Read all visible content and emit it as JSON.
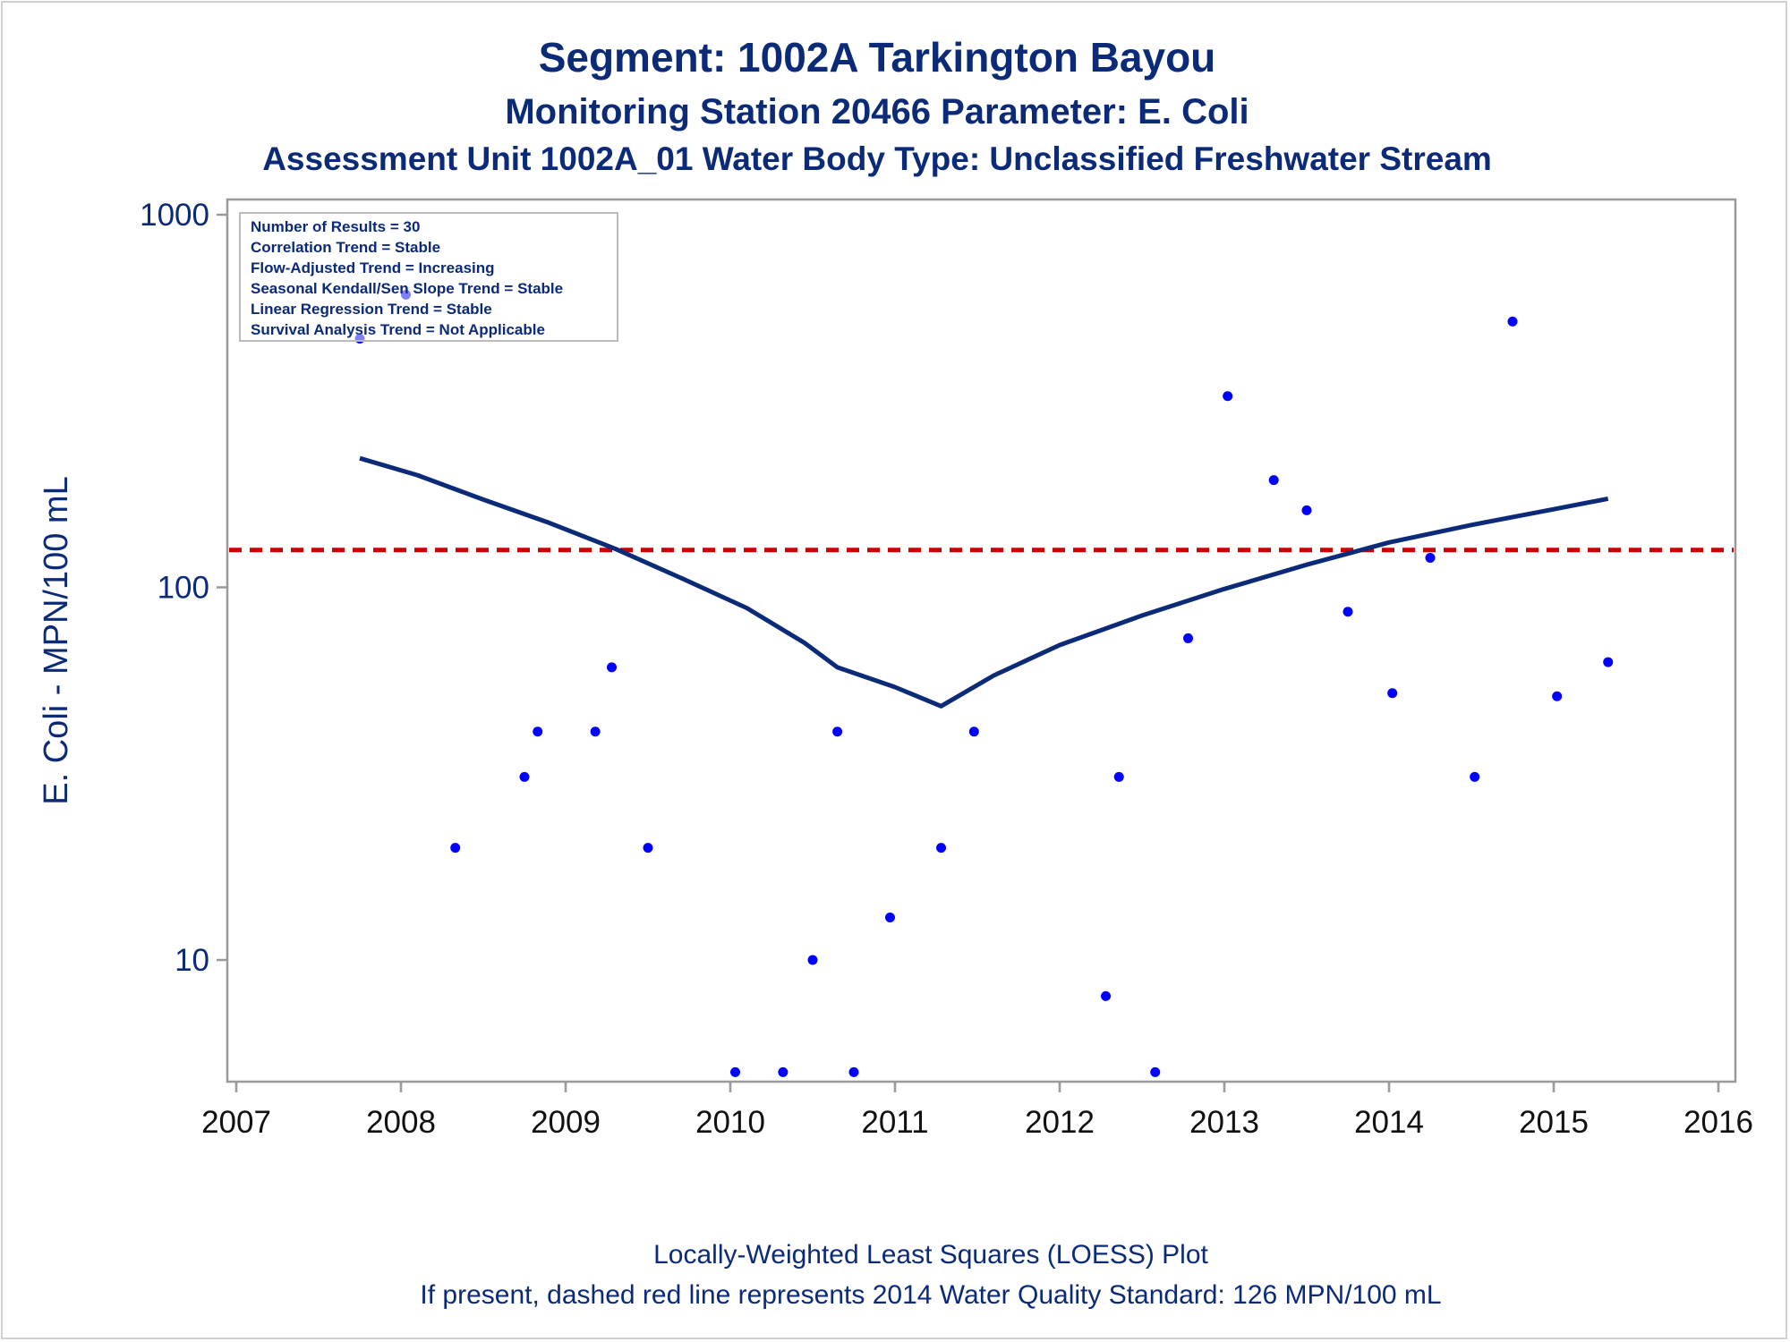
{
  "chart_data": {
    "type": "scatter",
    "title": "Segment: 1002A  Tarkington Bayou",
    "subtitle": "Monitoring Station 20466 Parameter: E. Coli",
    "subtitle2": "Assessment Unit 1002A_01   Water Body Type: Unclassified Freshwater Stream",
    "ylabel": "E. Coli - MPN/100 mL",
    "y_scale": "log",
    "ylim": [
      5,
      1000
    ],
    "xlim": [
      2007,
      2016
    ],
    "x_ticks": [
      "2007",
      "2008",
      "2009",
      "2010",
      "2011",
      "2012",
      "2013",
      "2014",
      "2015",
      "2016"
    ],
    "y_ticks": [
      "10",
      "100",
      "1000"
    ],
    "legend_placement": "top-left",
    "legend_lines": [
      "Number of Results = 30",
      "Correlation Trend = Stable",
      "Flow-Adjusted Trend = Increasing",
      "Seasonal Kendall/Sen Slope Trend = Stable",
      "Linear Regression Trend = Stable",
      "Survival Analysis Trend = Not Applicable"
    ],
    "footnotes": [
      "Locally-Weighted Least Squares (LOESS) Plot",
      "If present, dashed red line represents 2014 Water Quality Standard: 126 MPN/100 mL"
    ],
    "standard_value": 126,
    "colors": {
      "points": "#0000ff",
      "loess": "#0b2a78",
      "standard": "#cc0000",
      "text": "#0b2a78"
    },
    "points": [
      {
        "x": 2007.75,
        "y": 465
      },
      {
        "x": 2008.03,
        "y": 610
      },
      {
        "x": 2008.33,
        "y": 20
      },
      {
        "x": 2008.75,
        "y": 31
      },
      {
        "x": 2008.83,
        "y": 41
      },
      {
        "x": 2009.18,
        "y": 41
      },
      {
        "x": 2009.28,
        "y": 61
      },
      {
        "x": 2009.5,
        "y": 20
      },
      {
        "x": 2010.03,
        "y": 5
      },
      {
        "x": 2010.32,
        "y": 5
      },
      {
        "x": 2010.5,
        "y": 10
      },
      {
        "x": 2010.65,
        "y": 41
      },
      {
        "x": 2010.75,
        "y": 5
      },
      {
        "x": 2010.97,
        "y": 13
      },
      {
        "x": 2011.28,
        "y": 20
      },
      {
        "x": 2011.48,
        "y": 41
      },
      {
        "x": 2012.28,
        "y": 8
      },
      {
        "x": 2012.36,
        "y": 31
      },
      {
        "x": 2012.58,
        "y": 5
      },
      {
        "x": 2012.78,
        "y": 73
      },
      {
        "x": 2013.02,
        "y": 326
      },
      {
        "x": 2013.3,
        "y": 194
      },
      {
        "x": 2013.5,
        "y": 161
      },
      {
        "x": 2013.75,
        "y": 86
      },
      {
        "x": 2014.02,
        "y": 52
      },
      {
        "x": 2014.25,
        "y": 120
      },
      {
        "x": 2014.52,
        "y": 31
      },
      {
        "x": 2014.75,
        "y": 517
      },
      {
        "x": 2015.02,
        "y": 51
      },
      {
        "x": 2015.33,
        "y": 63
      }
    ],
    "loess": [
      {
        "x": 2007.75,
        "y": 222
      },
      {
        "x": 2008.1,
        "y": 200
      },
      {
        "x": 2008.5,
        "y": 172
      },
      {
        "x": 2008.9,
        "y": 149
      },
      {
        "x": 2009.3,
        "y": 127
      },
      {
        "x": 2009.7,
        "y": 106
      },
      {
        "x": 2010.1,
        "y": 88
      },
      {
        "x": 2010.45,
        "y": 71
      },
      {
        "x": 2010.65,
        "y": 61
      },
      {
        "x": 2011.0,
        "y": 54
      },
      {
        "x": 2011.28,
        "y": 48
      },
      {
        "x": 2011.6,
        "y": 58
      },
      {
        "x": 2012.0,
        "y": 70
      },
      {
        "x": 2012.5,
        "y": 84
      },
      {
        "x": 2013.0,
        "y": 99
      },
      {
        "x": 2013.5,
        "y": 115
      },
      {
        "x": 2014.0,
        "y": 132
      },
      {
        "x": 2014.5,
        "y": 147
      },
      {
        "x": 2015.0,
        "y": 162
      },
      {
        "x": 2015.33,
        "y": 173
      }
    ]
  }
}
